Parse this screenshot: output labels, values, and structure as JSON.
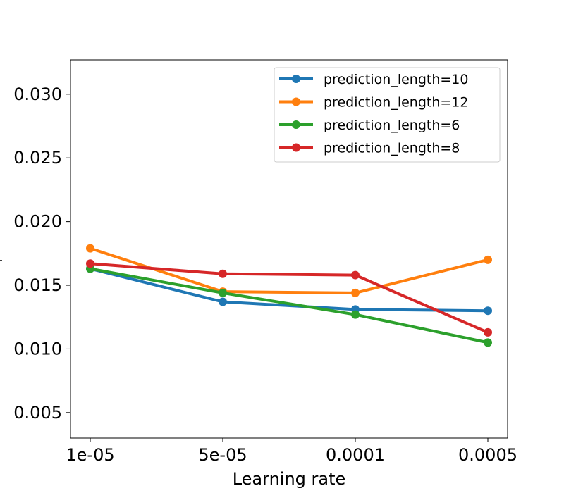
{
  "chart_data": {
    "type": "line",
    "title": "",
    "xlabel": "Learning rate",
    "ylabel": "",
    "categories": [
      "1e-05",
      "5e-05",
      "0.0001",
      "0.0005"
    ],
    "ylim": [
      0.003,
      0.0327
    ],
    "yticks": [
      0.005,
      0.01,
      0.015,
      0.02,
      0.025,
      0.03
    ],
    "ytick_labels": [
      "0.005",
      "0.010",
      "0.015",
      "0.020",
      "0.025",
      "0.030"
    ],
    "grid": false,
    "legend_position": "top-right",
    "series": [
      {
        "name": "prediction_length=10",
        "color": "#1f77b4",
        "values": [
          0.0163,
          0.0137,
          0.0131,
          0.013
        ]
      },
      {
        "name": "prediction_length=12",
        "color": "#ff7f0e",
        "values": [
          0.0179,
          0.0145,
          0.0144,
          0.017
        ]
      },
      {
        "name": "prediction_length=6",
        "color": "#2ca02c",
        "values": [
          0.0163,
          0.0144,
          0.0127,
          0.0105
        ]
      },
      {
        "name": "prediction_length=8",
        "color": "#d62728",
        "values": [
          0.0167,
          0.0159,
          0.0158,
          0.0113
        ]
      }
    ]
  }
}
